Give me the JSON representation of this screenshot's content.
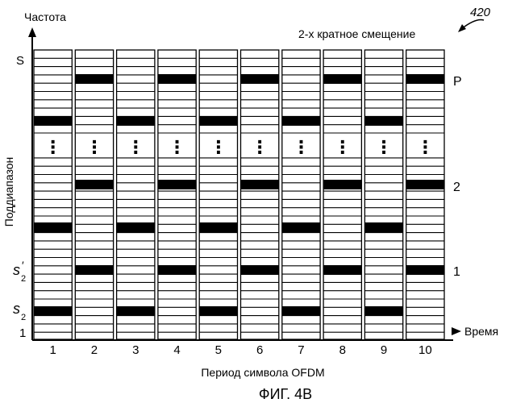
{
  "figure": {
    "ref_number": "420",
    "caption": "ФИГ. 4В",
    "title": "2-х кратное смещение"
  },
  "axes": {
    "y_title": "Частота",
    "y_side_label": "Поддиапазон",
    "x_title": "Время",
    "x_caption": "Период символа OFDM",
    "x_ticks": [
      "1",
      "2",
      "3",
      "4",
      "5",
      "6",
      "7",
      "8",
      "9",
      "10"
    ],
    "y_left_labels": {
      "top": "S",
      "s2_prime": "s",
      "s2_prime_sub": "2",
      "s2_prime_mark": "′",
      "s2": "s",
      "s2_sub": "2",
      "bottom": "1"
    }
  },
  "right_labels": {
    "p": "P",
    "two": "2",
    "one": "1"
  },
  "ellipsis": "⋮",
  "colors": {
    "pilot": "#000000",
    "grid": "#000000",
    "background": "#ffffff"
  }
}
